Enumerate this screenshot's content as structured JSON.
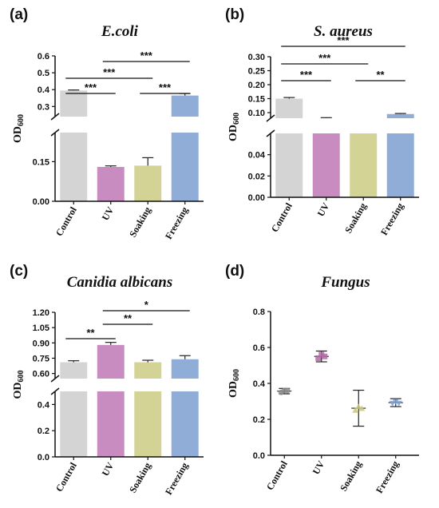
{
  "chart_data": [
    {
      "type": "bar",
      "panel_label": "(a)",
      "title": "E.coli",
      "ylabel_main": "OD",
      "ylabel_sub": "600",
      "categories": [
        "Control",
        "UV",
        "Soaking",
        "Freezing"
      ],
      "values": [
        0.395,
        0.13,
        0.135,
        0.365
      ],
      "errors": [
        0.003,
        0.004,
        0.03,
        0.012
      ],
      "colors": [
        "#d4d4d4",
        "#c98cc0",
        "#d4d396",
        "#8fadd6"
      ],
      "axis_break": true,
      "lower_ticks": [
        "0.00",
        "0.15"
      ],
      "upper_ticks": [
        "0.3",
        "0.4",
        "0.5",
        "0.6"
      ],
      "significance": [
        {
          "from": "Control",
          "to": "UV",
          "label": "***"
        },
        {
          "from": "Control",
          "to": "Soaking",
          "label": "***"
        },
        {
          "from": "Soaking",
          "to": "Freezing",
          "label": "***"
        },
        {
          "from": "UV",
          "to": "Freezing",
          "label": "***"
        }
      ]
    },
    {
      "type": "bar",
      "panel_label": "(b)",
      "title": "S. aureus",
      "ylabel_main": "OD",
      "ylabel_sub": "600",
      "categories": [
        "Control",
        "UV",
        "Soaking",
        "Freezing"
      ],
      "values": [
        0.15,
        0.08,
        0.065,
        0.095
      ],
      "errors": [
        0.004,
        0.002,
        0.004,
        0.002
      ],
      "colors": [
        "#d4d4d4",
        "#c98cc0",
        "#d4d396",
        "#8fadd6"
      ],
      "axis_break": true,
      "lower_ticks": [
        "0.00",
        "0.02",
        "0.04"
      ],
      "upper_ticks": [
        "0.10",
        "0.15",
        "0.20",
        "0.25",
        "0.30"
      ],
      "significance": [
        {
          "from": "Control",
          "to": "UV",
          "label": "***"
        },
        {
          "from": "Control",
          "to": "Soaking",
          "label": "***"
        },
        {
          "from": "Soaking",
          "to": "Freezing",
          "label": "**"
        },
        {
          "from": "Control",
          "to": "Freezing",
          "label": "***"
        }
      ]
    },
    {
      "type": "bar",
      "panel_label": "(c)",
      "title": "Canidia albicans",
      "ylabel_main": "OD",
      "ylabel_sub": "600",
      "categories": [
        "Control",
        "UV",
        "Soaking",
        "Freezing"
      ],
      "values": [
        0.71,
        0.88,
        0.71,
        0.74
      ],
      "errors": [
        0.015,
        0.025,
        0.02,
        0.035
      ],
      "colors": [
        "#d4d4d4",
        "#c98cc0",
        "#d4d396",
        "#8fadd6"
      ],
      "axis_break": true,
      "lower_ticks": [
        "0.0",
        "0.2",
        "0.4"
      ],
      "upper_ticks": [
        "0.60",
        "0.75",
        "0.90",
        "1.05",
        "1.20"
      ],
      "significance": [
        {
          "from": "Control",
          "to": "UV",
          "label": "**"
        },
        {
          "from": "UV",
          "to": "Soaking",
          "label": "**"
        },
        {
          "from": "UV",
          "to": "Freezing",
          "label": "*"
        }
      ]
    },
    {
      "type": "scatter",
      "panel_label": "(d)",
      "title": "Fungus",
      "ylabel_main": "OD",
      "ylabel_sub": "600",
      "categories": [
        "Control",
        "UV",
        "Soaking",
        "Freezing"
      ],
      "points": [
        [
          0.35,
          0.36,
          0.36
        ],
        [
          0.54,
          0.56,
          0.55
        ],
        [
          0.25,
          0.27,
          0.26
        ],
        [
          0.29,
          0.3,
          0.29
        ]
      ],
      "means": [
        0.357,
        0.55,
        0.262,
        0.293
      ],
      "errors": [
        0.015,
        0.03,
        0.1,
        0.022
      ],
      "colors": [
        "#8c8c8c",
        "#b668a8",
        "#c9c77a",
        "#7fa1d4"
      ],
      "ylim": [
        0,
        0.8
      ],
      "ticks": [
        "0.0",
        "0.2",
        "0.4",
        "0.6",
        "0.8"
      ]
    }
  ]
}
